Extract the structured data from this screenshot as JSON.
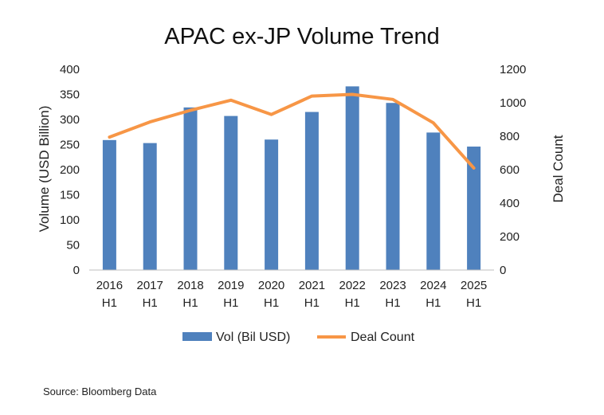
{
  "chart_data": {
    "type": "bar",
    "title": "APAC ex-JP Volume Trend",
    "categories": [
      [
        "2016",
        "H1"
      ],
      [
        "2017",
        "H1"
      ],
      [
        "2018",
        "H1"
      ],
      [
        "2019",
        "H1"
      ],
      [
        "2020",
        "H1"
      ],
      [
        "2021",
        "H1"
      ],
      [
        "2022",
        "H1"
      ],
      [
        "2023",
        "H1"
      ],
      [
        "2024",
        "H1"
      ],
      [
        "2025",
        "H1"
      ]
    ],
    "series": [
      {
        "name": "Vol (Bil USD)",
        "type": "bar",
        "axis": "left",
        "color": "#4f81bd",
        "values": [
          259,
          253,
          324,
          307,
          260,
          315,
          366,
          333,
          274,
          246
        ]
      },
      {
        "name": "Deal Count",
        "type": "line",
        "axis": "right",
        "color": "#f79646",
        "values": [
          795,
          885,
          955,
          1015,
          930,
          1040,
          1050,
          1020,
          880,
          610
        ]
      }
    ],
    "ylabel": "Volume (USD Billion)",
    "ylim": [
      0,
      400
    ],
    "yticks": [
      "0",
      "50",
      "100",
      "150",
      "200",
      "250",
      "300",
      "350",
      "400"
    ],
    "y2label": "Deal Count",
    "y2lim": [
      0,
      1200
    ],
    "y2ticks": [
      "0",
      "200",
      "400",
      "600",
      "800",
      "1000",
      "1200"
    ],
    "grid": false,
    "legend": "bottom"
  },
  "footer": {
    "source": "Source: Bloomberg Data"
  }
}
